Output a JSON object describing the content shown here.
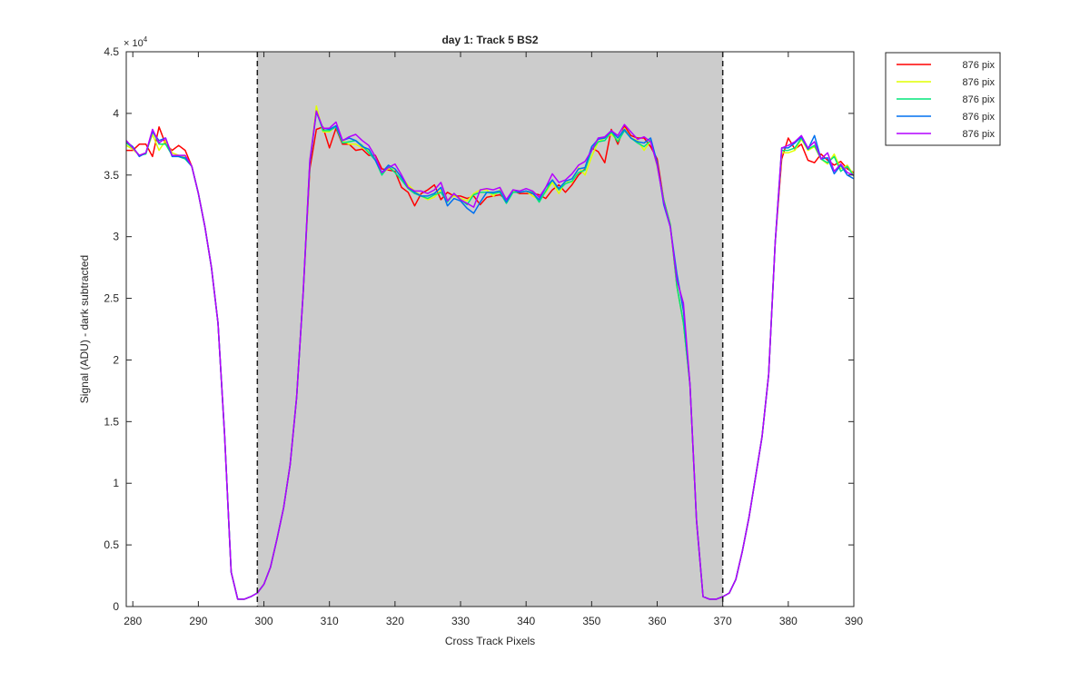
{
  "chart_data": {
    "type": "line",
    "title": "day 1: Track 5  BS2",
    "xlabel": "Cross Track Pixels",
    "ylabel": "Signal (ADU) - dark subtracted",
    "y_exponent_label": "× 10",
    "y_exponent_power": "4",
    "xlim": [
      279,
      390
    ],
    "ylim": [
      0,
      4.5
    ],
    "xticks": [
      280,
      290,
      300,
      310,
      320,
      330,
      340,
      350,
      360,
      370,
      380,
      390
    ],
    "yticks": [
      0,
      0.5,
      1,
      1.5,
      2,
      2.5,
      3,
      3.5,
      4,
      4.5
    ],
    "ytick_labels": [
      "0",
      "0.5",
      "1",
      "1.5",
      "2",
      "2.5",
      "3",
      "3.5",
      "4",
      "4.5"
    ],
    "shaded_region": {
      "x": [
        299,
        370
      ],
      "color": "#cccccc"
    },
    "vertical_dashed_lines": [
      299,
      370
    ],
    "grid": false,
    "legend_position": "outside-top-right",
    "x": [
      279,
      280,
      281,
      282,
      283,
      284,
      285,
      286,
      287,
      288,
      289,
      290,
      291,
      292,
      293,
      294,
      295,
      296,
      297,
      298,
      299,
      300,
      301,
      302,
      303,
      304,
      305,
      306,
      307,
      308,
      309,
      310,
      311,
      312,
      313,
      314,
      315,
      316,
      317,
      318,
      319,
      320,
      321,
      322,
      323,
      324,
      325,
      326,
      327,
      328,
      329,
      330,
      331,
      332,
      333,
      334,
      335,
      336,
      337,
      338,
      339,
      340,
      341,
      342,
      343,
      344,
      345,
      346,
      347,
      348,
      349,
      350,
      351,
      352,
      353,
      354,
      355,
      356,
      357,
      358,
      359,
      360,
      361,
      362,
      363,
      364,
      365,
      366,
      367,
      368,
      369,
      370,
      371,
      372,
      373,
      374,
      375,
      376,
      377,
      378,
      379,
      380,
      381,
      382,
      383,
      384,
      385,
      386,
      387,
      388,
      389,
      390
    ],
    "series": [
      {
        "name": "876 pix",
        "color": "#ff0000",
        "values": [
          3.7,
          3.7,
          3.75,
          3.75,
          3.65,
          3.89,
          3.75,
          3.7,
          3.74,
          3.7,
          3.57,
          3.35,
          3.08,
          2.75,
          2.3,
          1.4,
          0.28,
          0.06,
          0.06,
          0.08,
          0.11,
          0.18,
          0.32,
          0.55,
          0.8,
          1.15,
          1.7,
          2.55,
          3.55,
          3.87,
          3.89,
          3.72,
          3.88,
          3.75,
          3.75,
          3.7,
          3.71,
          3.66,
          3.66,
          3.55,
          3.54,
          3.53,
          3.4,
          3.36,
          3.25,
          3.35,
          3.38,
          3.42,
          3.3,
          3.36,
          3.33,
          3.33,
          3.31,
          3.33,
          3.26,
          3.32,
          3.33,
          3.34,
          3.3,
          3.37,
          3.35,
          3.35,
          3.35,
          3.34,
          3.31,
          3.38,
          3.42,
          3.36,
          3.42,
          3.5,
          3.55,
          3.72,
          3.69,
          3.6,
          3.87,
          3.75,
          3.9,
          3.82,
          3.8,
          3.8,
          3.73,
          3.63,
          3.3,
          3.1,
          2.6,
          2.3,
          1.8,
          0.7,
          0.08,
          0.06,
          0.06,
          0.08,
          0.11,
          0.22,
          0.45,
          0.72,
          1.05,
          1.38,
          1.88,
          2.95,
          3.63,
          3.8,
          3.71,
          3.75,
          3.62,
          3.6,
          3.67,
          3.62,
          3.58,
          3.61,
          3.55,
          3.52
        ]
      },
      {
        "name": "876 pix",
        "color": "#e1ff00",
        "values": [
          3.74,
          3.71,
          3.66,
          3.68,
          3.83,
          3.7,
          3.78,
          3.68,
          3.66,
          3.65,
          3.57,
          3.35,
          3.08,
          2.75,
          2.3,
          1.4,
          0.28,
          0.06,
          0.06,
          0.08,
          0.11,
          0.18,
          0.32,
          0.55,
          0.8,
          1.15,
          1.7,
          2.55,
          3.6,
          4.06,
          3.85,
          3.85,
          3.9,
          3.78,
          3.75,
          3.75,
          3.72,
          3.7,
          3.63,
          3.52,
          3.55,
          3.55,
          3.48,
          3.42,
          3.37,
          3.33,
          3.3,
          3.32,
          3.38,
          3.3,
          3.33,
          3.31,
          3.29,
          3.35,
          3.38,
          3.38,
          3.33,
          3.38,
          3.29,
          3.37,
          3.36,
          3.37,
          3.33,
          3.3,
          3.36,
          3.44,
          3.35,
          3.45,
          3.44,
          3.56,
          3.5,
          3.65,
          3.77,
          3.8,
          3.83,
          3.78,
          3.88,
          3.8,
          3.78,
          3.7,
          3.78,
          3.57,
          3.3,
          3.1,
          2.6,
          2.3,
          1.8,
          0.7,
          0.08,
          0.06,
          0.06,
          0.08,
          0.11,
          0.22,
          0.45,
          0.72,
          1.05,
          1.38,
          1.88,
          2.95,
          3.68,
          3.68,
          3.7,
          3.79,
          3.7,
          3.73,
          3.63,
          3.59,
          3.67,
          3.55,
          3.58,
          3.5
        ]
      },
      {
        "name": "876 pix",
        "color": "#00e57a",
        "values": [
          3.76,
          3.72,
          3.66,
          3.67,
          3.86,
          3.75,
          3.75,
          3.66,
          3.65,
          3.63,
          3.57,
          3.35,
          3.08,
          2.75,
          2.3,
          1.4,
          0.28,
          0.06,
          0.06,
          0.08,
          0.11,
          0.18,
          0.32,
          0.55,
          0.8,
          1.15,
          1.7,
          2.55,
          3.6,
          4.02,
          3.86,
          3.86,
          3.89,
          3.76,
          3.77,
          3.78,
          3.74,
          3.68,
          3.62,
          3.5,
          3.57,
          3.52,
          3.46,
          3.39,
          3.35,
          3.33,
          3.31,
          3.34,
          3.36,
          3.28,
          3.35,
          3.3,
          3.26,
          3.34,
          3.36,
          3.36,
          3.35,
          3.36,
          3.27,
          3.36,
          3.36,
          3.37,
          3.36,
          3.28,
          3.37,
          3.46,
          3.38,
          3.43,
          3.45,
          3.52,
          3.54,
          3.7,
          3.77,
          3.78,
          3.85,
          3.77,
          3.86,
          3.8,
          3.76,
          3.73,
          3.78,
          3.58,
          3.3,
          3.1,
          2.6,
          2.3,
          1.8,
          0.7,
          0.08,
          0.06,
          0.06,
          0.08,
          0.11,
          0.22,
          0.45,
          0.72,
          1.05,
          1.38,
          1.88,
          2.95,
          3.7,
          3.7,
          3.72,
          3.8,
          3.71,
          3.74,
          3.63,
          3.6,
          3.65,
          3.53,
          3.57,
          3.49
        ]
      },
      {
        "name": "876 pix",
        "color": "#0070f0",
        "values": [
          3.77,
          3.73,
          3.65,
          3.68,
          3.85,
          3.78,
          3.8,
          3.65,
          3.65,
          3.64,
          3.57,
          3.35,
          3.08,
          2.75,
          2.3,
          1.4,
          0.28,
          0.06,
          0.06,
          0.08,
          0.11,
          0.18,
          0.32,
          0.55,
          0.8,
          1.15,
          1.7,
          2.55,
          3.6,
          4.01,
          3.88,
          3.87,
          3.9,
          3.78,
          3.8,
          3.78,
          3.73,
          3.71,
          3.62,
          3.52,
          3.58,
          3.55,
          3.48,
          3.4,
          3.36,
          3.33,
          3.33,
          3.35,
          3.4,
          3.25,
          3.31,
          3.29,
          3.23,
          3.19,
          3.28,
          3.36,
          3.36,
          3.37,
          3.28,
          3.38,
          3.36,
          3.37,
          3.35,
          3.3,
          3.4,
          3.46,
          3.39,
          3.45,
          3.47,
          3.55,
          3.56,
          3.73,
          3.79,
          3.8,
          3.86,
          3.8,
          3.87,
          3.8,
          3.77,
          3.76,
          3.8,
          3.6,
          3.26,
          3.08,
          2.7,
          2.4,
          1.8,
          0.7,
          0.08,
          0.06,
          0.06,
          0.08,
          0.11,
          0.22,
          0.45,
          0.72,
          1.05,
          1.38,
          1.88,
          2.95,
          3.72,
          3.72,
          3.76,
          3.81,
          3.71,
          3.82,
          3.63,
          3.64,
          3.51,
          3.58,
          3.5,
          3.47
        ]
      },
      {
        "name": "876 pix",
        "color": "#b400ff",
        "values": [
          3.78,
          3.72,
          3.66,
          3.68,
          3.87,
          3.76,
          3.8,
          3.66,
          3.66,
          3.66,
          3.57,
          3.35,
          3.08,
          2.75,
          2.3,
          1.4,
          0.28,
          0.06,
          0.06,
          0.08,
          0.11,
          0.18,
          0.32,
          0.55,
          0.8,
          1.15,
          1.7,
          2.55,
          3.62,
          4.02,
          3.88,
          3.88,
          3.93,
          3.78,
          3.81,
          3.83,
          3.78,
          3.74,
          3.65,
          3.52,
          3.56,
          3.59,
          3.5,
          3.4,
          3.37,
          3.37,
          3.35,
          3.38,
          3.44,
          3.29,
          3.35,
          3.3,
          3.27,
          3.24,
          3.38,
          3.39,
          3.38,
          3.4,
          3.3,
          3.38,
          3.37,
          3.39,
          3.37,
          3.32,
          3.4,
          3.51,
          3.44,
          3.46,
          3.51,
          3.58,
          3.61,
          3.7,
          3.8,
          3.81,
          3.86,
          3.82,
          3.91,
          3.85,
          3.79,
          3.81,
          3.77,
          3.58,
          3.28,
          3.08,
          2.65,
          2.46,
          1.8,
          0.7,
          0.08,
          0.06,
          0.06,
          0.08,
          0.11,
          0.22,
          0.45,
          0.72,
          1.05,
          1.38,
          1.88,
          2.95,
          3.72,
          3.74,
          3.77,
          3.82,
          3.72,
          3.77,
          3.63,
          3.68,
          3.53,
          3.59,
          3.52,
          3.5
        ]
      }
    ]
  }
}
